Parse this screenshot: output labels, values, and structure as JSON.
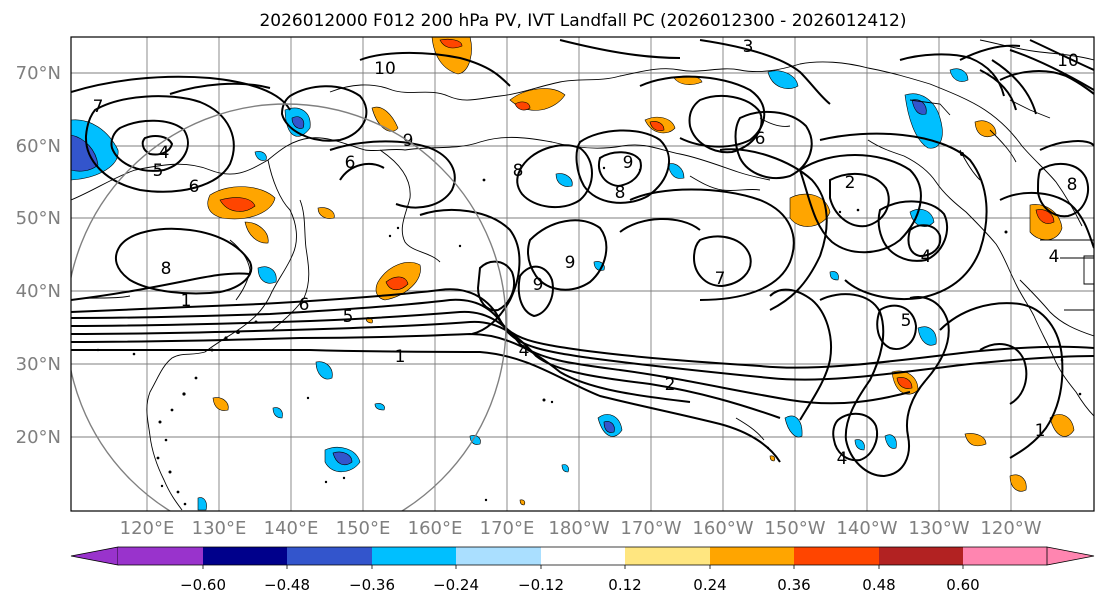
{
  "title": "2026012000 F012 200 hPa PV, IVT Landfall PC (2026012300 - 2026012412)",
  "map": {
    "lat_labels": [
      "70°N",
      "60°N",
      "50°N",
      "40°N",
      "30°N",
      "20°N"
    ],
    "lon_labels": [
      "120°E",
      "130°E",
      "140°E",
      "150°E",
      "160°E",
      "170°E",
      "180°W",
      "170°W",
      "160°W",
      "150°W",
      "140°W",
      "130°W",
      "120°W"
    ],
    "contour_labels": [
      "10",
      "3",
      "7",
      "5",
      "6",
      "4",
      "6",
      "8",
      "1",
      "6",
      "5",
      "1",
      "4",
      "2",
      "9",
      "8",
      "9",
      "7",
      "6",
      "2",
      "4",
      "8",
      "5",
      "4",
      "4",
      "1",
      "9",
      "8",
      "10",
      "9"
    ],
    "colors": {
      "pv_contour": "#000000",
      "coast": "#000000",
      "grid": "#7f7f7f",
      "tick_label": "#7f7f7f",
      "circle": "#808080"
    }
  },
  "colorbar": {
    "tick_labels": [
      "−0.60",
      "−0.48",
      "−0.36",
      "−0.24",
      "−0.12",
      "0.12",
      "0.24",
      "0.36",
      "0.48",
      "0.60"
    ],
    "bins": [
      {
        "range": "< -0.60",
        "color": "#9933cc"
      },
      {
        "range": "-0.60 to -0.48",
        "color": "#00008b"
      },
      {
        "range": "-0.48 to -0.36",
        "color": "#3355cc"
      },
      {
        "range": "-0.36 to -0.24",
        "color": "#00bfff"
      },
      {
        "range": "-0.24 to -0.12",
        "color": "#aadfff"
      },
      {
        "range": "-0.12 to 0.12",
        "color": "#ffffff"
      },
      {
        "range": "0.12 to 0.24",
        "color": "#ffe680"
      },
      {
        "range": "0.24 to 0.36",
        "color": "#ffa500"
      },
      {
        "range": "0.36 to 0.48",
        "color": "#ff4500"
      },
      {
        "range": "0.48 to 0.60",
        "color": "#b22222"
      },
      {
        "range": "> 0.60",
        "color": "#ff85b0"
      }
    ]
  }
}
